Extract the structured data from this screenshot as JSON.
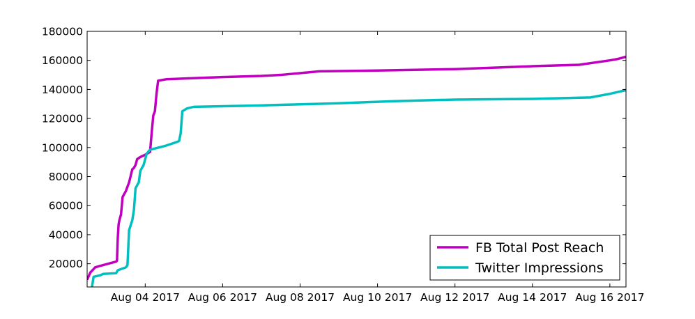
{
  "chart_data": {
    "type": "line",
    "x_unit": "days",
    "x_reference": "Aug 01 2017 00:00",
    "xlim": [
      "2017-08-02T12:00",
      "2017-08-16T10:00"
    ],
    "ylim": [
      4000,
      180000
    ],
    "x_ticks": [
      {
        "value": "2017-08-04",
        "label": "Aug 04 2017"
      },
      {
        "value": "2017-08-06",
        "label": "Aug 06 2017"
      },
      {
        "value": "2017-08-08",
        "label": "Aug 08 2017"
      },
      {
        "value": "2017-08-10",
        "label": "Aug 10 2017"
      },
      {
        "value": "2017-08-12",
        "label": "Aug 12 2017"
      },
      {
        "value": "2017-08-14",
        "label": "Aug 14 2017"
      },
      {
        "value": "2017-08-16",
        "label": "Aug 16 2017"
      }
    ],
    "y_ticks": [
      {
        "value": 20000,
        "label": "20000"
      },
      {
        "value": 40000,
        "label": "40000"
      },
      {
        "value": 60000,
        "label": "60000"
      },
      {
        "value": 80000,
        "label": "80000"
      },
      {
        "value": 100000,
        "label": "100000"
      },
      {
        "value": 120000,
        "label": "120000"
      },
      {
        "value": 140000,
        "label": "140000"
      },
      {
        "value": 160000,
        "label": "160000"
      },
      {
        "value": 180000,
        "label": "180000"
      }
    ],
    "legend_position": "bottom-right",
    "grid": false,
    "series": [
      {
        "name": "FB Total Post Reach",
        "color": "#bf00bf",
        "points": [
          [
            "2017-08-02T12:00",
            9000
          ],
          [
            "2017-08-02T14:00",
            14000
          ],
          [
            "2017-08-02T17:00",
            17500
          ],
          [
            "2017-08-02T20:00",
            18500
          ],
          [
            "2017-08-03T01:00",
            20000
          ],
          [
            "2017-08-03T06:00",
            21500
          ],
          [
            "2017-08-03T06:30",
            22000
          ],
          [
            "2017-08-03T07:00",
            38000
          ],
          [
            "2017-08-03T07:30",
            47000
          ],
          [
            "2017-08-03T08:00",
            50000
          ],
          [
            "2017-08-03T09:00",
            54000
          ],
          [
            "2017-08-03T10:00",
            66000
          ],
          [
            "2017-08-03T12:00",
            70000
          ],
          [
            "2017-08-03T14:00",
            76000
          ],
          [
            "2017-08-03T16:00",
            85000
          ],
          [
            "2017-08-03T17:00",
            86000
          ],
          [
            "2017-08-03T18:00",
            88000
          ],
          [
            "2017-08-03T19:00",
            92000
          ],
          [
            "2017-08-03T21:00",
            93500
          ],
          [
            "2017-08-04T00:00",
            95000
          ],
          [
            "2017-08-04T03:00",
            97000
          ],
          [
            "2017-08-04T04:00",
            110000
          ],
          [
            "2017-08-04T05:00",
            122000
          ],
          [
            "2017-08-04T06:00",
            125000
          ],
          [
            "2017-08-04T07:00",
            137000
          ],
          [
            "2017-08-04T08:00",
            146000
          ],
          [
            "2017-08-04T13:00",
            147000
          ],
          [
            "2017-08-05T00:00",
            147500
          ],
          [
            "2017-08-06T00:00",
            148500
          ],
          [
            "2017-08-07T00:00",
            149300
          ],
          [
            "2017-08-07T12:00",
            150000
          ],
          [
            "2017-08-08T12:00",
            152500
          ],
          [
            "2017-08-10T00:00",
            153000
          ],
          [
            "2017-08-12T00:00",
            154000
          ],
          [
            "2017-08-14T00:00",
            156000
          ],
          [
            "2017-08-15T05:00",
            157000
          ],
          [
            "2017-08-16T00:00",
            160000
          ],
          [
            "2017-08-16T05:00",
            161000
          ],
          [
            "2017-08-16T10:00",
            162500
          ]
        ]
      },
      {
        "name": "Twitter Impressions",
        "color": "#00bfbf",
        "points": [
          [
            "2017-08-02T15:00",
            4000
          ],
          [
            "2017-08-02T16:00",
            11000
          ],
          [
            "2017-08-02T20:00",
            12000
          ],
          [
            "2017-08-02T22:00",
            13000
          ],
          [
            "2017-08-03T06:00",
            13500
          ],
          [
            "2017-08-03T07:00",
            15500
          ],
          [
            "2017-08-03T12:00",
            17500
          ],
          [
            "2017-08-03T13:00",
            19000
          ],
          [
            "2017-08-03T14:00",
            43000
          ],
          [
            "2017-08-03T16:00",
            50000
          ],
          [
            "2017-08-03T17:00",
            57000
          ],
          [
            "2017-08-03T18:00",
            72000
          ],
          [
            "2017-08-03T19:00",
            74000
          ],
          [
            "2017-08-03T20:00",
            76000
          ],
          [
            "2017-08-03T21:00",
            84000
          ],
          [
            "2017-08-03T23:00",
            88000
          ],
          [
            "2017-08-04T01:00",
            96000
          ],
          [
            "2017-08-04T03:00",
            98500
          ],
          [
            "2017-08-04T12:00",
            101000
          ],
          [
            "2017-08-04T20:00",
            104000
          ],
          [
            "2017-08-04T21:00",
            104500
          ],
          [
            "2017-08-04T22:00",
            110000
          ],
          [
            "2017-08-04T23:00",
            125000
          ],
          [
            "2017-08-05T02:00",
            127000
          ],
          [
            "2017-08-05T06:00",
            128000
          ],
          [
            "2017-08-07T00:00",
            129000
          ],
          [
            "2017-08-09T00:00",
            130500
          ],
          [
            "2017-08-10T12:00",
            132000
          ],
          [
            "2017-08-12T00:00",
            133000
          ],
          [
            "2017-08-14T00:00",
            133500
          ],
          [
            "2017-08-15T12:00",
            134500
          ],
          [
            "2017-08-16T00:00",
            137000
          ],
          [
            "2017-08-16T10:00",
            139500
          ]
        ]
      }
    ]
  }
}
